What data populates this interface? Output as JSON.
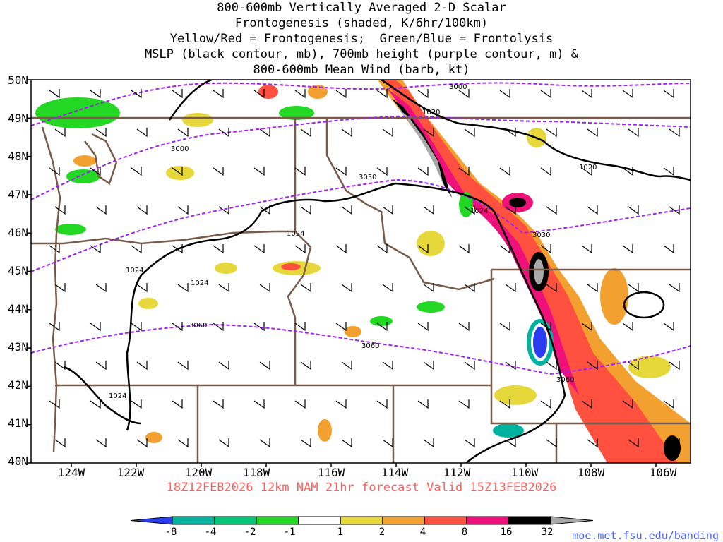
{
  "title_lines": [
    "800-600mb Vertically Averaged 2-D Scalar",
    "Frontogenesis (shaded, K/6hr/100km)",
    "Yellow/Red = Frontogenesis;  Green/Blue = Frontolysis",
    "MSLP (black contour, mb), 700mb height (purple contour, m) &",
    "800-600mb Mean Wind (barb, kt)"
  ],
  "latitude_labels": [
    "50N",
    "49N",
    "48N",
    "47N",
    "46N",
    "45N",
    "44N",
    "43N",
    "42N",
    "41N",
    "40N"
  ],
  "longitude_labels": [
    "124W",
    "122W",
    "120W",
    "118W",
    "116W",
    "114W",
    "112W",
    "110W",
    "108W",
    "106W"
  ],
  "height_contour_labels": [
    "3000",
    "3000",
    "3030",
    "3030",
    "3060",
    "3060",
    "3060"
  ],
  "mslp_contour_labels": [
    "1020",
    "1020",
    "1024",
    "1024",
    "1024",
    "1024",
    "1024"
  ],
  "run_info": "18Z12FEB2026  12km NAM 21hr forecast Valid 15Z13FEB2026",
  "colorbar": {
    "labels": [
      "-8",
      "-4",
      "-2",
      "-1",
      "1",
      "2",
      "4",
      "8",
      "16",
      "32"
    ],
    "colors": [
      "#2a3cf0",
      "#00b3a0",
      "#00c878",
      "#22d822",
      "#ffffff",
      "#e6d83a",
      "#f2a030",
      "#ff5040",
      "#f0107a",
      "#000000",
      "#a8a8a8"
    ]
  },
  "colors": {
    "height_contour": "#a020f0",
    "mslp_contour": "#000000",
    "borders": "#7a5a48",
    "run_text": "#ff6060",
    "credit": "#4a63ff"
  },
  "credit": "moe.met.fsu.edu/banding"
}
